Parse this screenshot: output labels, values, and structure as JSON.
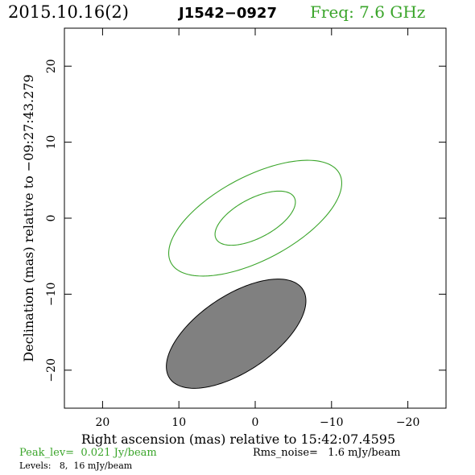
{
  "header": {
    "date": "2015.10.16(2)",
    "source": "J1542−0927",
    "freq": "Freq: 7.6 GHz"
  },
  "footer": {
    "peak": "Peak_lev=  0.021 Jy/beam",
    "rms": "Rms_noise=   1.6 mJy/beam",
    "levels": "Levels:   8,  16 mJy/beam"
  },
  "colors": {
    "accent_green": "#3aa52a",
    "beam_fill": "#808080",
    "frame": "#000000"
  },
  "chart_data": {
    "type": "contour",
    "xlabel": "Right ascension (mas) relative to 15:42:07.4595",
    "ylabel": "Declination (mas) relative to −09:27:43.279",
    "xlim": [
      25,
      -25
    ],
    "ylim": [
      -25,
      25
    ],
    "xticks": [
      20,
      10,
      0,
      -10,
      -20
    ],
    "yticks": [
      20,
      10,
      0,
      -10,
      -20
    ],
    "tick_labels_x": [
      "20",
      "10",
      "0",
      "−10",
      "−20"
    ],
    "tick_labels_y": [
      "20",
      "10",
      "0",
      "−10",
      "−20"
    ],
    "contours": [
      {
        "level_mJy": 8,
        "cx": 0,
        "cy": 0,
        "a": 12.5,
        "b": 5.5,
        "pa_deg": 118
      },
      {
        "level_mJy": 16,
        "cx": 0,
        "cy": 0,
        "a": 5.8,
        "b": 2.6,
        "pa_deg": 118
      }
    ],
    "beam": {
      "cx": 2.5,
      "cy": -15.2,
      "a": 10.5,
      "b": 5.0,
      "pa_deg": 124
    }
  }
}
